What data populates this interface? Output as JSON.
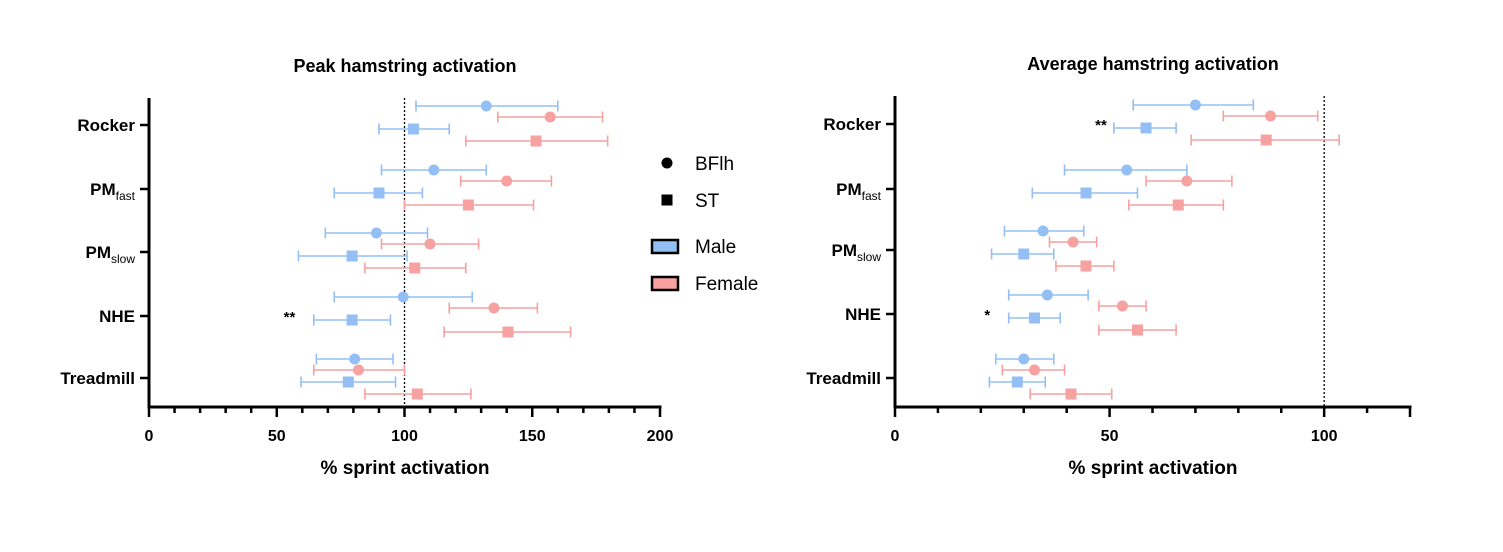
{
  "chart_data": [
    {
      "type": "forest",
      "title": "Peak hamstring activation",
      "xlabel": "% sprint activation",
      "ylabel": "",
      "xlim": [
        0,
        200
      ],
      "xticks": [
        "0",
        "50",
        "100",
        "150",
        "200"
      ],
      "xtick_values": [
        0,
        50,
        100,
        150,
        200
      ],
      "minor_tick_step": 10,
      "reference_line": 100,
      "categories": [
        {
          "main": "Rocker",
          "sub": ""
        },
        {
          "main": "PM",
          "sub": "fast"
        },
        {
          "main": "PM",
          "sub": "slow"
        },
        {
          "main": "NHE",
          "sub": ""
        },
        {
          "main": "Treadmill",
          "sub": ""
        }
      ],
      "series": [
        {
          "name": "Male BFlh",
          "muscle": "BFlh",
          "sex": "Male",
          "marker": "circle",
          "values": [
            132,
            111.5,
            89,
            99.5,
            80.5
          ],
          "lower": [
            104.5,
            91,
            69,
            72.5,
            65.5
          ],
          "upper": [
            160,
            132,
            109,
            126.5,
            95.5
          ]
        },
        {
          "name": "Female BFlh",
          "muscle": "BFlh",
          "sex": "Female",
          "marker": "circle",
          "values": [
            157,
            140,
            110,
            135,
            82
          ],
          "lower": [
            136.5,
            122,
            91,
            117.5,
            64.5
          ],
          "upper": [
            177.5,
            157.5,
            129,
            152,
            100
          ]
        },
        {
          "name": "Male ST",
          "muscle": "ST",
          "sex": "Male",
          "marker": "square",
          "values": [
            103.5,
            90,
            79.5,
            79.5,
            78
          ],
          "lower": [
            90,
            72.5,
            58.5,
            64.5,
            59.5
          ],
          "upper": [
            117.5,
            107,
            101,
            94.5,
            96.5
          ]
        },
        {
          "name": "Female ST",
          "muscle": "ST",
          "sex": "Female",
          "marker": "square",
          "values": [
            151.5,
            125,
            104,
            140.5,
            105
          ],
          "lower": [
            124,
            100,
            84.5,
            115.5,
            84.5
          ],
          "upper": [
            179.5,
            150.5,
            124,
            165,
            126
          ]
        }
      ],
      "annotations": [
        {
          "text": "**",
          "category": "NHE",
          "x": 55
        }
      ]
    },
    {
      "type": "forest",
      "title": "Average hamstring activation",
      "xlabel": "% sprint activation",
      "ylabel": "",
      "xlim": [
        0,
        120
      ],
      "xticks": [
        "0",
        "50",
        "100"
      ],
      "xtick_values": [
        0,
        50,
        100
      ],
      "minor_tick_step": 10,
      "reference_line": 100,
      "categories": [
        {
          "main": "Rocker",
          "sub": ""
        },
        {
          "main": "PM",
          "sub": "fast"
        },
        {
          "main": "PM",
          "sub": "slow"
        },
        {
          "main": "NHE",
          "sub": ""
        },
        {
          "main": "Treadmill",
          "sub": ""
        }
      ],
      "series": [
        {
          "name": "Male BFlh",
          "muscle": "BFlh",
          "sex": "Male",
          "marker": "circle",
          "values": [
            70,
            54,
            34.5,
            35.5,
            30
          ],
          "lower": [
            55.5,
            39.5,
            25.5,
            26.5,
            23.5
          ],
          "upper": [
            83.5,
            68,
            44,
            45,
            37
          ]
        },
        {
          "name": "Female BFlh",
          "muscle": "BFlh",
          "sex": "Female",
          "marker": "circle",
          "values": [
            87.5,
            68,
            41.5,
            53,
            32.5
          ],
          "lower": [
            76.5,
            58.5,
            36,
            47.5,
            25
          ],
          "upper": [
            98.5,
            78.5,
            47,
            58.5,
            39.5
          ]
        },
        {
          "name": "Male ST",
          "muscle": "ST",
          "sex": "Male",
          "marker": "square",
          "values": [
            58.5,
            44.5,
            30,
            32.5,
            28.5
          ],
          "lower": [
            51,
            32,
            22.5,
            26.5,
            22
          ],
          "upper": [
            65.5,
            56.5,
            37,
            38.5,
            35
          ]
        },
        {
          "name": "Female ST",
          "muscle": "ST",
          "sex": "Female",
          "marker": "square",
          "values": [
            86.5,
            66,
            44.5,
            56.5,
            41
          ],
          "lower": [
            69,
            54.5,
            37.5,
            47.5,
            31.5
          ],
          "upper": [
            103.5,
            76.5,
            51,
            65.5,
            50.5
          ]
        }
      ],
      "annotations": [
        {
          "text": "**",
          "category": "Rocker",
          "x": 48
        },
        {
          "text": "*",
          "category": "NHE",
          "x": 21.5
        }
      ]
    }
  ],
  "legend": {
    "placement": "between-charts",
    "markers": [
      {
        "label": "BFlh",
        "shape": "circle"
      },
      {
        "label": "ST",
        "shape": "square"
      }
    ],
    "groups": [
      {
        "label": "Male",
        "color": "#94bff5"
      },
      {
        "label": "Female",
        "color": "#f7a1a1"
      }
    ]
  },
  "colors": {
    "male": "#94bff5",
    "female": "#f7a1a1",
    "axis": "#000000",
    "reference_line": "#000000"
  }
}
